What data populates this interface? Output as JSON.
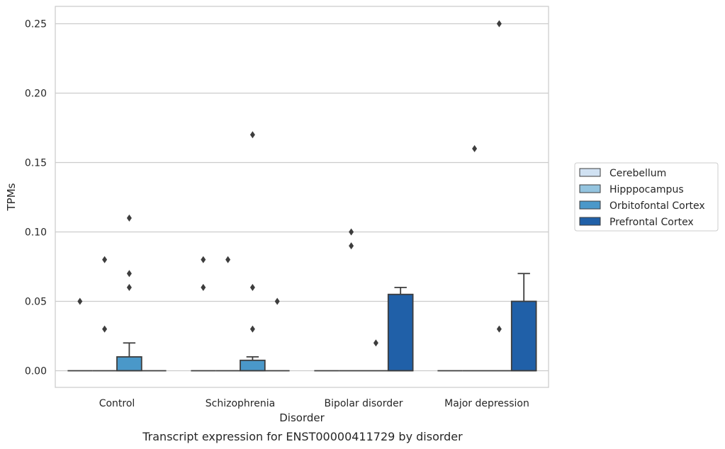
{
  "chart_data": {
    "type": "box",
    "caption": "Transcript expression for ENST00000411729 by disorder",
    "xlabel": "Disorder",
    "ylabel": "TPMs",
    "ylim": [
      -0.012,
      0.2625
    ],
    "yticks": [
      "0.00",
      "0.05",
      "0.10",
      "0.15",
      "0.20",
      "0.25"
    ],
    "categories": [
      "Control",
      "Schizophrenia",
      "Bipolar disorder",
      "Major depression"
    ],
    "grid": true,
    "legend_position": "right",
    "series": [
      {
        "name": "Cerebellum",
        "color": "#d0e1f2",
        "boxes": [
          {
            "q1": 0,
            "median": 0,
            "q3": 0,
            "whisker_low": 0,
            "whisker_high": 0,
            "outliers": [
              0.05
            ]
          },
          {
            "q1": 0,
            "median": 0,
            "q3": 0,
            "whisker_low": 0,
            "whisker_high": 0,
            "outliers": [
              0.08,
              0.06
            ]
          },
          {
            "q1": 0,
            "median": 0,
            "q3": 0,
            "whisker_low": 0,
            "whisker_high": 0,
            "outliers": []
          },
          {
            "q1": 0,
            "median": 0,
            "q3": 0,
            "whisker_low": 0,
            "whisker_high": 0,
            "outliers": []
          }
        ]
      },
      {
        "name": "Hipppocampus",
        "color": "#94c4df",
        "boxes": [
          {
            "q1": 0,
            "median": 0,
            "q3": 0,
            "whisker_low": 0,
            "whisker_high": 0,
            "outliers": [
              0.08,
              0.03
            ]
          },
          {
            "q1": 0,
            "median": 0,
            "q3": 0,
            "whisker_low": 0,
            "whisker_high": 0,
            "outliers": [
              0.08
            ]
          },
          {
            "q1": 0,
            "median": 0,
            "q3": 0,
            "whisker_low": 0,
            "whisker_high": 0,
            "outliers": [
              0.1,
              0.09
            ]
          },
          {
            "q1": 0,
            "median": 0,
            "q3": 0,
            "whisker_low": 0,
            "whisker_high": 0,
            "outliers": [
              0.16
            ]
          }
        ]
      },
      {
        "name": "Orbitofontal Cortex",
        "color": "#4a98c9",
        "boxes": [
          {
            "q1": 0,
            "median": 0,
            "q3": 0.01,
            "whisker_low": 0,
            "whisker_high": 0.02,
            "outliers": [
              0.11,
              0.07,
              0.06
            ]
          },
          {
            "q1": 0,
            "median": 0,
            "q3": 0.0075,
            "whisker_low": 0,
            "whisker_high": 0.01,
            "outliers": [
              0.17,
              0.06,
              0.03
            ]
          },
          {
            "q1": 0,
            "median": 0,
            "q3": 0,
            "whisker_low": 0,
            "whisker_high": 0,
            "outliers": [
              0.02
            ]
          },
          {
            "q1": 0,
            "median": 0,
            "q3": 0,
            "whisker_low": 0,
            "whisker_high": 0,
            "outliers": [
              0.25,
              0.03
            ]
          }
        ]
      },
      {
        "name": "Prefrontal Cortex",
        "color": "#2060a8",
        "boxes": [
          {
            "q1": 0,
            "median": 0,
            "q3": 0,
            "whisker_low": 0,
            "whisker_high": 0,
            "outliers": []
          },
          {
            "q1": 0,
            "median": 0,
            "q3": 0,
            "whisker_low": 0,
            "whisker_high": 0,
            "outliers": [
              0.05
            ]
          },
          {
            "q1": 0,
            "median": 0,
            "q3": 0.055,
            "whisker_low": 0,
            "whisker_high": 0.06,
            "outliers": []
          },
          {
            "q1": 0,
            "median": 0,
            "q3": 0.05,
            "whisker_low": 0,
            "whisker_high": 0.07,
            "outliers": []
          }
        ]
      }
    ]
  }
}
